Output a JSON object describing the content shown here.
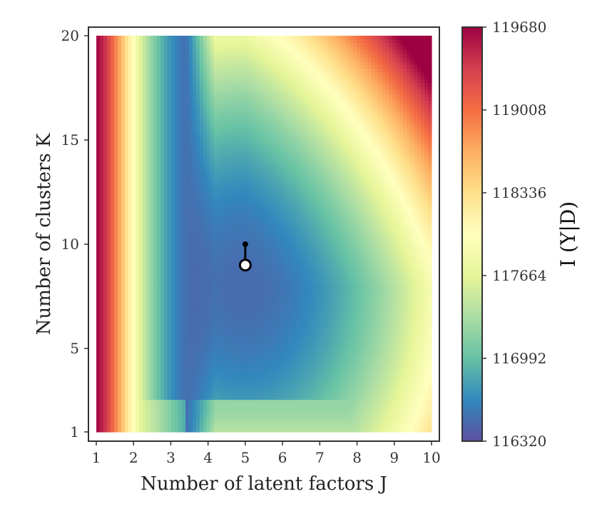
{
  "chart_data": {
    "type": "heatmap",
    "title": "",
    "xlabel": "Number of latent factors J",
    "ylabel": "Number of clusters K",
    "x_ticks": [
      "1",
      "2",
      "3",
      "4",
      "5",
      "6",
      "7",
      "8",
      "9",
      "10"
    ],
    "y_ticks": [
      "1",
      "5",
      "10",
      "15",
      "20"
    ],
    "xlim": [
      1,
      10
    ],
    "ylim": [
      1,
      20
    ],
    "colorbar": {
      "label": "I (Y|D)",
      "min": 116320,
      "max": 119680,
      "ticks": [
        "119680",
        "119008",
        "118336",
        "117664",
        "116992",
        "116320"
      ],
      "colormap": "Spectral",
      "stops": [
        "#5e4fa2",
        "#3288bd",
        "#66c2a5",
        "#abdda4",
        "#e6f598",
        "#ffffbf",
        "#fee08b",
        "#fdae61",
        "#f46d43",
        "#d53e4f",
        "#9e0142"
      ]
    },
    "grid": false,
    "markers": [
      {
        "type": "path",
        "points": [
          {
            "J": 5,
            "K": 10
          },
          {
            "J": 5,
            "K": 9
          }
        ],
        "color": "#000000"
      },
      {
        "type": "optimum",
        "J": 5,
        "K": 9,
        "fill": "#ffffff",
        "edge": "#000000"
      }
    ]
  }
}
